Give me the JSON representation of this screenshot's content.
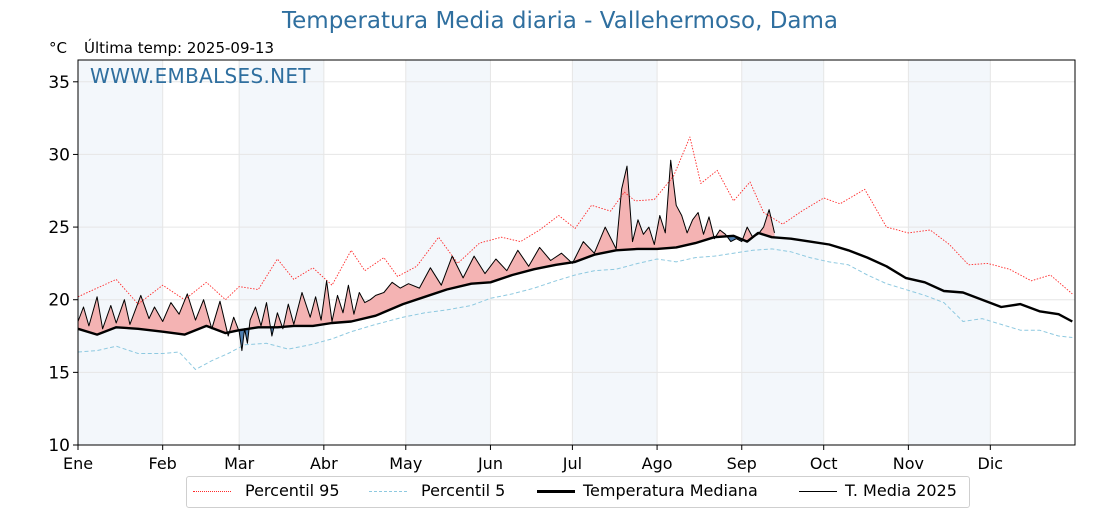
{
  "header": {
    "title": "Temperatura Media diaria - Vallehermoso, Dama",
    "unit": "°C",
    "last_temp": "Última temp: 2025-09-13",
    "watermark": "WWW.EMBALSES.NET"
  },
  "legend": {
    "p95": "Percentil 95",
    "p5": "Percentil 5",
    "median": "Temperatura Mediana",
    "current": "T. Media 2025"
  },
  "colors": {
    "p95": "#ff2a2a",
    "p5": "#8ec9e0",
    "median": "#000000",
    "current": "#000000",
    "above_fill": "#f4b3b3",
    "below_fill": "#4f7fb0",
    "band": "#f3f7fb",
    "grid": "#e6e6e6",
    "title": "#2f6f9f"
  },
  "chart_data": {
    "type": "line",
    "title": "Temperatura Media diaria - Vallehermoso, Dama",
    "ylabel": "°C",
    "ylim": [
      10,
      36.5
    ],
    "yticks": [
      10,
      15,
      20,
      25,
      30,
      35
    ],
    "xlim": [
      1,
      366
    ],
    "months": [
      {
        "label": "Ene",
        "day": 1
      },
      {
        "label": "Feb",
        "day": 32
      },
      {
        "label": "Mar",
        "day": 60
      },
      {
        "label": "Abr",
        "day": 91
      },
      {
        "label": "May",
        "day": 121
      },
      {
        "label": "Jun",
        "day": 152
      },
      {
        "label": "Jul",
        "day": 182
      },
      {
        "label": "Ago",
        "day": 213
      },
      {
        "label": "Sep",
        "day": 244
      },
      {
        "label": "Oct",
        "day": 274
      },
      {
        "label": "Nov",
        "day": 305
      },
      {
        "label": "Dic",
        "day": 335
      }
    ],
    "shaded_months": [
      "Ene",
      "Mar",
      "May",
      "Jul",
      "Sep",
      "Nov"
    ],
    "grid": true,
    "legend_position": "bottom",
    "series": [
      {
        "key": "p95",
        "name": "Percentil 95",
        "style": "dotted",
        "x": [
          1,
          8,
          15,
          23,
          32,
          40,
          48,
          55,
          60,
          67,
          74,
          80,
          87,
          94,
          101,
          106,
          113,
          118,
          125,
          133,
          140,
          148,
          156,
          163,
          170,
          177,
          183,
          189,
          196,
          201,
          205,
          212,
          219,
          225,
          229,
          235,
          241,
          247,
          252,
          259,
          266,
          274,
          280,
          289,
          297,
          305,
          313,
          320,
          327,
          334,
          342,
          350,
          357,
          365
        ],
        "y": [
          20.2,
          20.8,
          21.4,
          19.7,
          21.0,
          20.0,
          21.2,
          20.0,
          20.9,
          20.7,
          22.8,
          21.4,
          22.2,
          21.0,
          23.4,
          22.0,
          22.9,
          21.6,
          22.3,
          24.3,
          22.5,
          23.9,
          24.3,
          24.0,
          24.8,
          25.8,
          24.9,
          26.5,
          26.1,
          27.4,
          26.8,
          26.9,
          28.5,
          31.2,
          28.0,
          28.9,
          26.8,
          28.1,
          26.0,
          25.2,
          26.1,
          27.0,
          26.6,
          27.6,
          25.0,
          24.6,
          24.8,
          23.8,
          22.4,
          22.5,
          22.1,
          21.3,
          21.7,
          20.4
        ]
      },
      {
        "key": "p5",
        "name": "Percentil 5",
        "style": "dashed",
        "x": [
          1,
          8,
          15,
          23,
          32,
          38,
          44,
          50,
          56,
          62,
          70,
          78,
          86,
          94,
          101,
          110,
          120,
          128,
          136,
          145,
          152,
          160,
          168,
          176,
          183,
          190,
          198,
          206,
          213,
          220,
          227,
          234,
          241,
          248,
          255,
          262,
          269,
          276,
          283,
          290,
          297,
          304,
          311,
          318,
          325,
          332,
          339,
          346,
          353,
          360,
          365
        ],
        "y": [
          16.4,
          16.5,
          16.8,
          16.3,
          16.3,
          16.4,
          15.2,
          15.8,
          16.3,
          16.9,
          17.0,
          16.6,
          16.9,
          17.3,
          17.8,
          18.3,
          18.8,
          19.1,
          19.3,
          19.6,
          20.1,
          20.4,
          20.8,
          21.3,
          21.7,
          22.0,
          22.1,
          22.5,
          22.8,
          22.6,
          22.9,
          23.0,
          23.2,
          23.4,
          23.5,
          23.3,
          22.9,
          22.6,
          22.4,
          21.7,
          21.1,
          20.7,
          20.3,
          19.8,
          18.5,
          18.7,
          18.3,
          17.9,
          17.9,
          17.5,
          17.4
        ]
      },
      {
        "key": "median",
        "name": "Temperatura Mediana",
        "style": "thick",
        "x": [
          1,
          8,
          15,
          23,
          32,
          40,
          48,
          55,
          60,
          67,
          74,
          80,
          87,
          94,
          101,
          110,
          120,
          128,
          136,
          145,
          152,
          160,
          168,
          176,
          183,
          190,
          198,
          206,
          213,
          220,
          227,
          234,
          241,
          246,
          250,
          255,
          262,
          269,
          276,
          283,
          290,
          297,
          304,
          311,
          318,
          325,
          332,
          339,
          346,
          353,
          360,
          365
        ],
        "y": [
          18.0,
          17.6,
          18.1,
          18.0,
          17.8,
          17.6,
          18.2,
          17.7,
          17.9,
          18.1,
          18.1,
          18.2,
          18.2,
          18.4,
          18.5,
          18.9,
          19.7,
          20.2,
          20.7,
          21.1,
          21.2,
          21.7,
          22.1,
          22.4,
          22.6,
          23.1,
          23.4,
          23.5,
          23.5,
          23.6,
          23.9,
          24.3,
          24.4,
          24.0,
          24.6,
          24.3,
          24.2,
          24.0,
          23.8,
          23.4,
          22.9,
          22.3,
          21.5,
          21.2,
          20.6,
          20.5,
          20.0,
          19.5,
          19.7,
          19.2,
          19.0,
          18.5
        ]
      },
      {
        "key": "current",
        "name": "T. Media 2025",
        "style": "thin",
        "x": [
          1,
          3,
          5,
          8,
          10,
          13,
          15,
          18,
          20,
          24,
          27,
          29,
          32,
          35,
          38,
          41,
          44,
          47,
          50,
          53,
          56,
          58,
          60,
          61,
          62,
          63,
          64,
          66,
          68,
          70,
          72,
          74,
          76,
          78,
          80,
          83,
          86,
          88,
          90,
          92,
          94,
          96,
          98,
          100,
          102,
          104,
          106,
          108,
          110,
          113,
          116,
          119,
          122,
          126,
          130,
          134,
          138,
          142,
          146,
          150,
          154,
          158,
          162,
          166,
          170,
          174,
          178,
          182,
          186,
          190,
          194,
          198,
          200,
          202,
          204,
          206,
          208,
          210,
          212,
          214,
          216,
          218,
          220,
          222,
          224,
          226,
          228,
          230,
          232,
          234,
          236,
          238,
          240,
          242,
          244,
          246,
          248,
          250,
          252,
          254,
          256
        ],
        "y": [
          18.5,
          19.5,
          18.2,
          20.2,
          18.0,
          19.6,
          18.4,
          20.0,
          18.3,
          20.3,
          18.7,
          19.5,
          18.5,
          19.8,
          19.0,
          20.4,
          18.6,
          20.0,
          18.0,
          19.9,
          17.5,
          18.8,
          17.8,
          16.5,
          18.0,
          17.0,
          18.6,
          19.5,
          18.2,
          19.8,
          17.5,
          19.1,
          18.0,
          19.7,
          18.3,
          20.5,
          18.8,
          20.2,
          18.6,
          21.3,
          18.5,
          20.3,
          19.1,
          21.0,
          19.0,
          20.5,
          19.8,
          20.0,
          20.3,
          20.5,
          21.2,
          20.8,
          21.1,
          20.8,
          22.2,
          21.0,
          23.0,
          21.5,
          23.0,
          21.8,
          22.8,
          22.0,
          23.4,
          22.3,
          23.6,
          22.7,
          23.2,
          22.5,
          24.0,
          23.2,
          25.0,
          23.5,
          27.6,
          29.2,
          24.0,
          25.5,
          24.5,
          25.0,
          23.8,
          25.8,
          24.6,
          29.6,
          26.5,
          25.8,
          24.6,
          25.5,
          26.0,
          24.5,
          25.7,
          24.2,
          24.8,
          24.5,
          24.0,
          24.2,
          24.0,
          25.0,
          24.3,
          24.5,
          25.0,
          26.2,
          24.6
        ]
      }
    ]
  }
}
